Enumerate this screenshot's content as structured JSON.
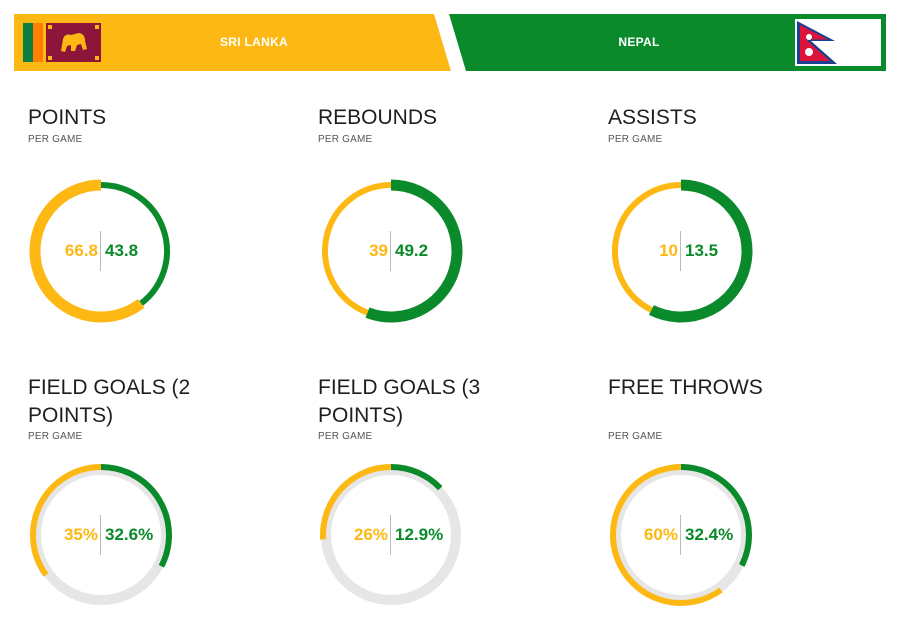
{
  "teams": {
    "left": {
      "name": "SRI LANKA",
      "color": "#FDB813",
      "flag_icon": "sri-lanka-flag-icon"
    },
    "right": {
      "name": "NEPAL",
      "color": "#0A8A2A",
      "flag_icon": "nepal-flag-icon"
    }
  },
  "track_color": "#E6E6E6",
  "stats": [
    {
      "title": "POINTS",
      "subtitle": "PER GAME",
      "left_value": "66.8",
      "right_value": "43.8",
      "left_fraction": 0.604,
      "right_fraction": 0.396,
      "show_track": false
    },
    {
      "title": "REBOUNDS",
      "subtitle": "PER GAME",
      "left_value": "39",
      "right_value": "49.2",
      "left_fraction": 0.442,
      "right_fraction": 0.558,
      "show_track": false
    },
    {
      "title": "ASSISTS",
      "subtitle": "PER GAME",
      "left_value": "10",
      "right_value": "13.5",
      "left_fraction": 0.426,
      "right_fraction": 0.574,
      "show_track": false
    },
    {
      "title": "FIELD GOALS (2 POINTS)",
      "subtitle": "PER GAME",
      "left_value": "35%",
      "right_value": "32.6%",
      "left_fraction": 0.35,
      "right_fraction": 0.326,
      "show_track": true
    },
    {
      "title": "FIELD GOALS (3 POINTS)",
      "subtitle": "PER GAME",
      "left_value": "26%",
      "right_value": "12.9%",
      "left_fraction": 0.26,
      "right_fraction": 0.129,
      "show_track": true
    },
    {
      "title": "FREE THROWS",
      "subtitle": "PER GAME",
      "left_value": "60%",
      "right_value": "32.4%",
      "left_fraction": 0.6,
      "right_fraction": 0.324,
      "show_track": true
    }
  ]
}
